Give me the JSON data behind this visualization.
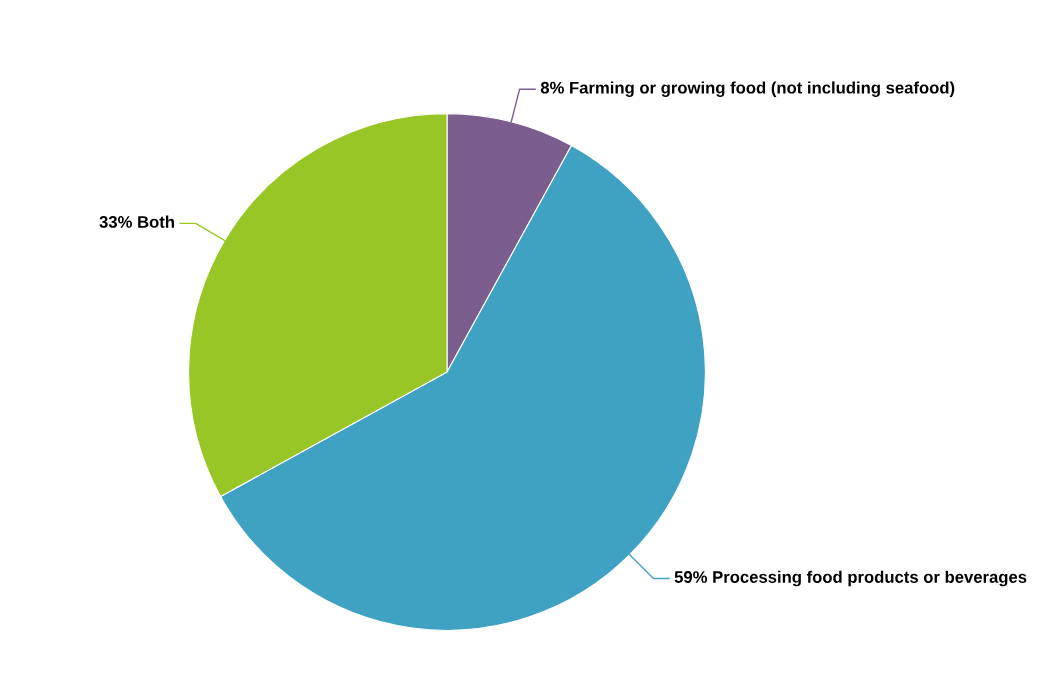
{
  "chart_data": {
    "type": "pie",
    "categories": [
      "Farming or growing food (not including seafood)",
      "Processing food products or beverages",
      "Both"
    ],
    "values": [
      8,
      59,
      33
    ],
    "value_labels": [
      "8%",
      "59%",
      "33%"
    ],
    "colors": [
      "#7b5e8e",
      "#40a2c2",
      "#97c626"
    ],
    "legend": false
  }
}
